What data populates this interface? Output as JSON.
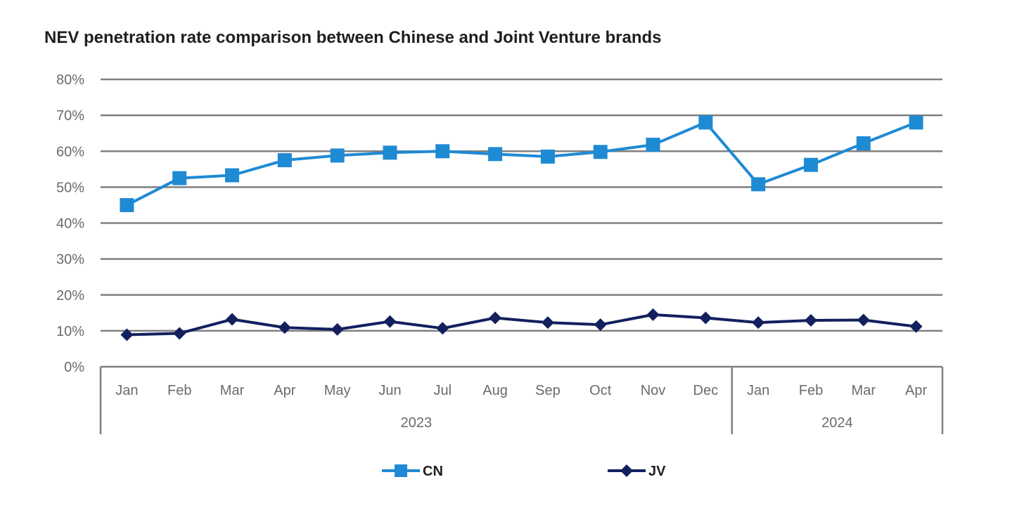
{
  "chart_data": {
    "type": "line",
    "title": "NEV penetration rate comparison between Chinese and Joint Venture brands",
    "xlabel": "",
    "ylabel": "",
    "ylim": [
      0,
      80
    ],
    "yticks": [
      "0%",
      "10%",
      "20%",
      "30%",
      "40%",
      "50%",
      "60%",
      "70%",
      "80%"
    ],
    "categories": [
      "Jan",
      "Feb",
      "Mar",
      "Apr",
      "May",
      "Jun",
      "Jul",
      "Aug",
      "Sep",
      "Oct",
      "Nov",
      "Dec",
      "Jan",
      "Feb",
      "Mar",
      "Apr"
    ],
    "groups": [
      {
        "label": "2023",
        "count": 12
      },
      {
        "label": "2024",
        "count": 4
      }
    ],
    "grid": true,
    "legend_position": "bottom",
    "series": [
      {
        "name": "CN",
        "color": "#1f8ad4",
        "marker": "square",
        "values": [
          45,
          52.5,
          53.3,
          57.5,
          58.8,
          59.6,
          60,
          59.2,
          58.5,
          59.8,
          61.8,
          68,
          50.8,
          56.2,
          62.2,
          68
        ]
      },
      {
        "name": "JV",
        "color": "#13205e",
        "marker": "diamond",
        "values": [
          8.9,
          9.3,
          13.2,
          10.9,
          10.4,
          12.6,
          10.7,
          13.6,
          12.3,
          11.7,
          14.5,
          13.6,
          12.3,
          12.9,
          13.0,
          11.2
        ]
      }
    ]
  }
}
